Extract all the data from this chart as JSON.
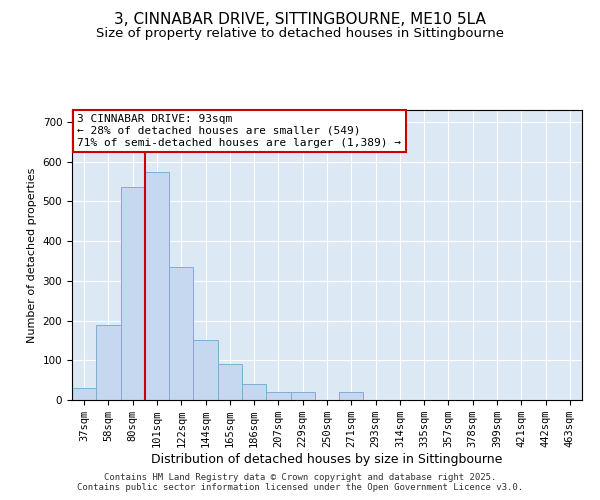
{
  "title1": "3, CINNABAR DRIVE, SITTINGBOURNE, ME10 5LA",
  "title2": "Size of property relative to detached houses in Sittingbourne",
  "xlabel": "Distribution of detached houses by size in Sittingbourne",
  "ylabel": "Number of detached properties",
  "categories": [
    "37sqm",
    "58sqm",
    "80sqm",
    "101sqm",
    "122sqm",
    "144sqm",
    "165sqm",
    "186sqm",
    "207sqm",
    "229sqm",
    "250sqm",
    "271sqm",
    "293sqm",
    "314sqm",
    "335sqm",
    "357sqm",
    "378sqm",
    "399sqm",
    "421sqm",
    "442sqm",
    "463sqm"
  ],
  "values": [
    30,
    190,
    535,
    575,
    335,
    150,
    90,
    40,
    20,
    20,
    0,
    20,
    0,
    0,
    0,
    0,
    0,
    0,
    0,
    0,
    0
  ],
  "bar_color": "#c5d8f0",
  "bar_edge_color": "#7aafd4",
  "vline_color": "#cc0000",
  "vline_x": 2.5,
  "annotation_text": "3 CINNABAR DRIVE: 93sqm\n← 28% of detached houses are smaller (549)\n71% of semi-detached houses are larger (1,389) →",
  "annotation_box_color": "#ffffff",
  "annotation_box_edge": "#cc0000",
  "ylim": [
    0,
    730
  ],
  "yticks": [
    0,
    100,
    200,
    300,
    400,
    500,
    600,
    700
  ],
  "background_color": "#dce9f5",
  "footer_text": "Contains HM Land Registry data © Crown copyright and database right 2025.\nContains public sector information licensed under the Open Government Licence v3.0.",
  "title1_fontsize": 11,
  "title2_fontsize": 9.5,
  "xlabel_fontsize": 9,
  "ylabel_fontsize": 8,
  "tick_fontsize": 7.5,
  "annotation_fontsize": 8,
  "footer_fontsize": 6.5
}
